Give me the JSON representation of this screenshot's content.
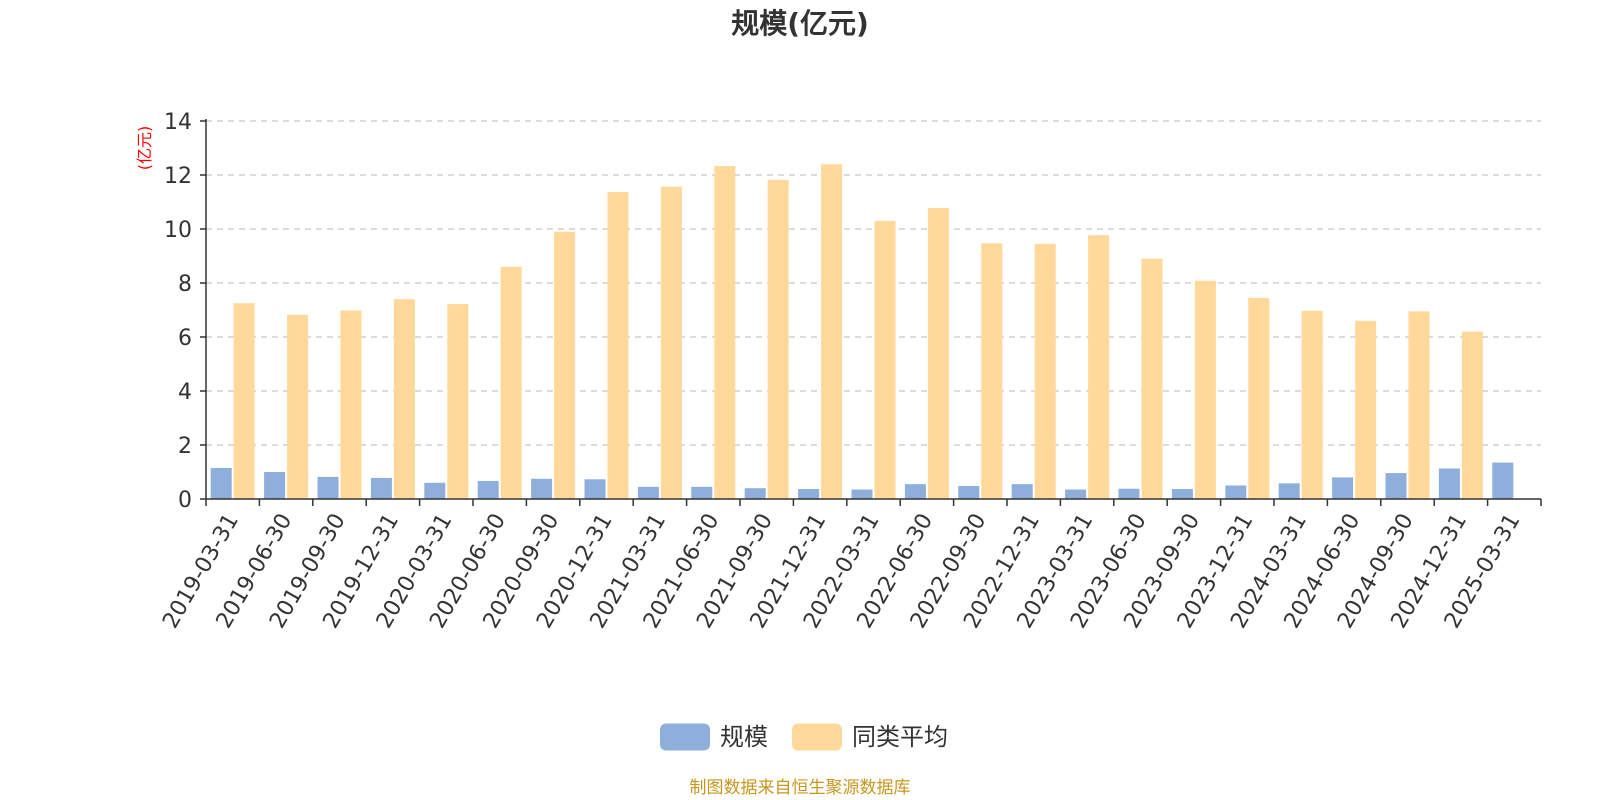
{
  "chart_data": {
    "type": "bar",
    "title": "规模(亿元)",
    "ylabel": "(亿元)",
    "ylim": [
      0,
      14
    ],
    "yticks": [
      0,
      2,
      4,
      6,
      8,
      10,
      12,
      14
    ],
    "grid": true,
    "legend_position": "bottom-center",
    "categories": [
      "2019-03-31",
      "2019-06-30",
      "2019-09-30",
      "2019-12-31",
      "2020-03-31",
      "2020-06-30",
      "2020-09-30",
      "2020-12-31",
      "2021-03-31",
      "2021-06-30",
      "2021-09-30",
      "2021-12-31",
      "2022-03-31",
      "2022-06-30",
      "2022-09-30",
      "2022-12-31",
      "2023-03-31",
      "2023-06-30",
      "2023-09-30",
      "2023-12-31",
      "2024-03-31",
      "2024-06-30",
      "2024-09-30",
      "2024-12-31",
      "2025-03-31"
    ],
    "series": [
      {
        "name": "规模",
        "color": "#8eaedc",
        "values": [
          1.15,
          1.0,
          0.82,
          0.78,
          0.6,
          0.67,
          0.75,
          0.73,
          0.45,
          0.45,
          0.4,
          0.37,
          0.35,
          0.55,
          0.48,
          0.55,
          0.35,
          0.38,
          0.37,
          0.5,
          0.58,
          0.8,
          0.96,
          1.13,
          1.35
        ]
      },
      {
        "name": "同类平均",
        "color": "#ffd89a",
        "values": [
          7.25,
          6.82,
          6.98,
          7.4,
          7.22,
          8.6,
          9.9,
          11.37,
          11.57,
          12.33,
          11.82,
          12.4,
          10.3,
          10.78,
          9.47,
          9.45,
          9.77,
          8.9,
          8.08,
          7.45,
          6.97,
          6.6,
          6.95,
          6.2,
          null
        ]
      }
    ],
    "source": "制图数据来自恒生聚源数据库"
  }
}
